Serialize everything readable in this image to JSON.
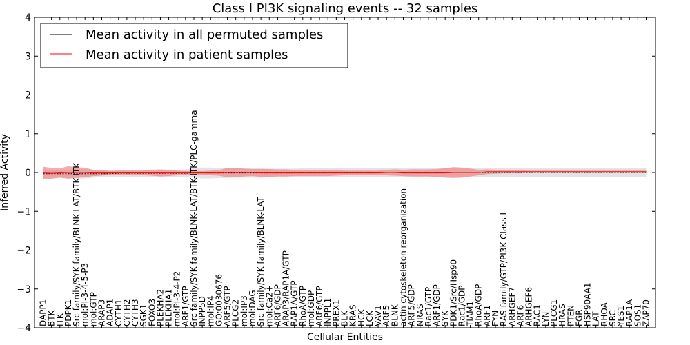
{
  "chart_data": {
    "type": "line",
    "title": "Class I PI3K signaling events -- 32 samples",
    "xlabel": "Cellular Entities",
    "ylabel": "Inferred Activity",
    "ylim": [
      -4,
      4
    ],
    "yticks": [
      "4",
      "3",
      "2",
      "1",
      "0",
      "−1",
      "−2",
      "−3",
      "−4"
    ],
    "grid": false,
    "legend_position": "top-left",
    "categories": [
      "DAPP1",
      "BTK",
      "ITK",
      "PDPK1",
      "Src family/SYK family/BLNK-LAT/BTK-ITK",
      "mol:PI-3-4-5-P3",
      "mol:GTP",
      "ARAP3",
      "ADAP1",
      "CYTH1",
      "CYTH2",
      "CYTH3",
      "SGK1",
      "FOXO3",
      "PLEKHA2",
      "PLEKHA1",
      "mol:PI-3-4-P2",
      "ARF1/GTP",
      "Src family/SYK family/BLNK-LAT/BTK-ITK/PLC-gamma",
      "INPP5D",
      "mol:IP4",
      "GO:0030676",
      "ARF5/GTP",
      "PLCG2",
      "mol:IP3",
      "mol:DAG",
      "Src family/SYK family/BLNK-LAT",
      "mol:Ca2+",
      "ARF6/GDP",
      "ARAP3/RAP1A/GTP",
      "RAP1A/GTP",
      "RhoA/GTP",
      "mol:GDP",
      "ARF6/GTP",
      "INPPL1",
      "PREX1",
      "BLK",
      "KRAS",
      "HCK",
      "LCK",
      "VAV1",
      "ARF5",
      "BLNK",
      "actin cytoskeleton reorganization",
      "ARF5/GDP",
      "NRAS",
      "Rac1/GTP",
      "ARF1/GDP",
      "SYK",
      "PDK1/Src/Hsp90",
      "Rac1/GDP",
      "TIAM1",
      "RhoA/GDP",
      "ARF1",
      "FYN",
      "RAS family/GTP/PI3K Class I",
      "ARHGEF7",
      "ARF6",
      "ARHGEF6",
      "RAC1",
      "LYN",
      "PLCG1",
      "HRAS",
      "PTEN",
      "FGR",
      "HSP90AA1",
      "LAT",
      "RHOA",
      "SRC",
      "YES1",
      "RAP1A",
      "SOS1",
      "ZAP70"
    ],
    "series": [
      {
        "name": "Mean activity in all permuted samples",
        "color": "#000000",
        "band_color": "#b0b0b0",
        "values": [
          -0.03,
          -0.03,
          -0.03,
          -0.03,
          -0.03,
          -0.03,
          -0.03,
          -0.03,
          -0.03,
          -0.02,
          -0.02,
          -0.02,
          -0.02,
          -0.02,
          -0.02,
          -0.02,
          -0.02,
          -0.02,
          -0.01,
          -0.01,
          -0.01,
          -0.01,
          -0.01,
          -0.01,
          -0.01,
          -0.01,
          -0.01,
          -0.01,
          -0.01,
          -0.01,
          -0.01,
          0.0,
          0.0,
          0.0,
          0.0,
          0.0,
          0.0,
          0.0,
          0.0,
          0.0,
          0.0,
          0.0,
          0.0,
          0.0,
          0.0,
          0.0,
          0.0,
          0.0,
          0.0,
          0.0,
          0.0,
          0.0,
          0.0,
          0.0,
          0.0,
          0.0,
          0.0,
          0.0,
          0.0,
          0.0,
          0.0,
          0.0,
          0.0,
          0.0,
          0.0,
          0.0,
          0.0,
          0.0,
          0.0,
          0.0,
          0.0,
          0.0,
          0.0
        ],
        "spread": [
          0.12,
          0.1,
          0.1,
          0.11,
          0.12,
          0.12,
          0.1,
          0.09,
          0.09,
          0.09,
          0.09,
          0.09,
          0.09,
          0.1,
          0.1,
          0.09,
          0.09,
          0.1,
          0.12,
          0.14,
          0.14,
          0.13,
          0.13,
          0.12,
          0.12,
          0.12,
          0.12,
          0.11,
          0.11,
          0.11,
          0.11,
          0.11,
          0.11,
          0.11,
          0.11,
          0.11,
          0.11,
          0.11,
          0.11,
          0.11,
          0.11,
          0.11,
          0.11,
          0.11,
          0.11,
          0.11,
          0.11,
          0.11,
          0.11,
          0.11,
          0.11,
          0.11,
          0.11,
          0.11,
          0.11,
          0.11,
          0.11,
          0.11,
          0.11,
          0.11,
          0.11,
          0.11,
          0.11,
          0.11,
          0.11,
          0.11,
          0.11,
          0.11,
          0.11,
          0.11,
          0.11,
          0.11,
          0.11
        ]
      },
      {
        "name": "Mean activity in patient samples",
        "color": "#ff0000",
        "band_color": "#f08080",
        "values": [
          -0.01,
          -0.02,
          -0.01,
          0.0,
          0.0,
          0.0,
          -0.01,
          -0.01,
          -0.01,
          -0.01,
          -0.01,
          -0.01,
          -0.01,
          -0.01,
          -0.01,
          -0.01,
          -0.01,
          -0.01,
          -0.01,
          -0.01,
          -0.01,
          -0.01,
          0.0,
          0.0,
          0.0,
          0.0,
          -0.01,
          -0.01,
          -0.01,
          -0.01,
          -0.01,
          -0.01,
          -0.01,
          -0.01,
          -0.01,
          -0.01,
          -0.01,
          -0.01,
          -0.01,
          -0.01,
          -0.01,
          0.0,
          0.0,
          -0.01,
          -0.01,
          -0.01,
          -0.01,
          -0.01,
          -0.01,
          0.0,
          0.0,
          0.0,
          0.0,
          0.02,
          0.02,
          0.02,
          0.02,
          0.02,
          0.02,
          0.02,
          0.02,
          0.02,
          0.02,
          0.02,
          0.02,
          0.02,
          0.02,
          0.02,
          0.02,
          0.02,
          0.02,
          0.02,
          0.02
        ],
        "spread": [
          0.16,
          0.14,
          0.12,
          0.16,
          0.14,
          0.12,
          0.08,
          0.07,
          0.05,
          0.06,
          0.06,
          0.06,
          0.06,
          0.07,
          0.09,
          0.08,
          0.06,
          0.05,
          0.05,
          0.05,
          0.06,
          0.07,
          0.12,
          0.12,
          0.1,
          0.09,
          0.1,
          0.1,
          0.09,
          0.09,
          0.08,
          0.08,
          0.08,
          0.08,
          0.08,
          0.07,
          0.06,
          0.06,
          0.06,
          0.06,
          0.06,
          0.07,
          0.08,
          0.08,
          0.09,
          0.09,
          0.09,
          0.1,
          0.12,
          0.14,
          0.13,
          0.1,
          0.07,
          0.06,
          0.05,
          0.04,
          0.04,
          0.04,
          0.03,
          0.03,
          0.03,
          0.03,
          0.03,
          0.03,
          0.03,
          0.03,
          0.03,
          0.03,
          0.03,
          0.03,
          0.03,
          0.03,
          0.03
        ]
      }
    ]
  }
}
